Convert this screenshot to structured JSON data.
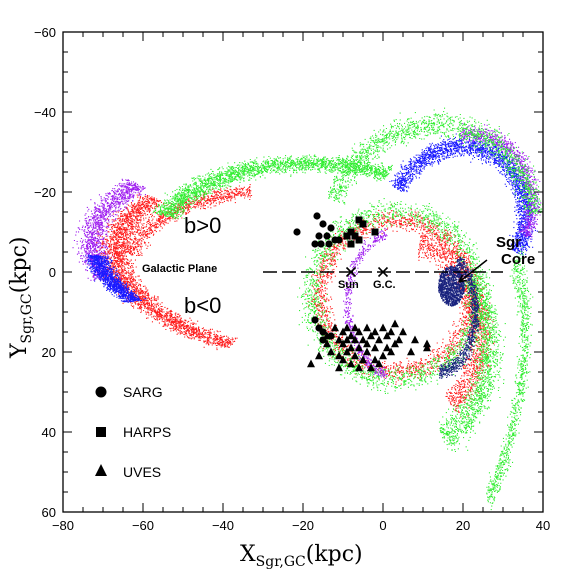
{
  "chart_data": {
    "type": "scatter",
    "xlabel": {
      "main": "X",
      "sub": "Sgr,GC",
      "unit": "(kpc)"
    },
    "ylabel": {
      "main": "Y",
      "sub": "Sgr,GC",
      "unit": "(kpc)"
    },
    "xlim": [
      -80,
      40
    ],
    "ylim": [
      60,
      -60
    ],
    "y_inverted": true,
    "xticks": [
      "−80",
      "−60",
      "−40",
      "−20",
      "0",
      "20",
      "40"
    ],
    "xtick_values": [
      -80,
      -60,
      -40,
      -20,
      0,
      20,
      40
    ],
    "yticks": [
      "−60",
      "−40",
      "−20",
      "0",
      "20",
      "40",
      "60"
    ],
    "ytick_values": [
      -60,
      -40,
      -20,
      0,
      20,
      40,
      60
    ],
    "grid": false,
    "legend_placement": "bottom-left",
    "colors": {
      "purple": "#a020f0",
      "blue": "#1a1aff",
      "red": "#ff2020",
      "green": "#33ee33",
      "navy": "#1a237e",
      "black": "#000000"
    },
    "streams": [
      {
        "color": "purple",
        "cx": -22,
        "cy": -2,
        "rx": 51,
        "ry": 25,
        "rot": 8,
        "t0": 155,
        "t1": 215,
        "width": 3.5,
        "n": 1400
      },
      {
        "color": "red",
        "cx": -20,
        "cy": -2,
        "rx": 47,
        "ry": 23,
        "rot": 5,
        "t0": 110,
        "t1": 215,
        "width": 3.5,
        "n": 2600
      },
      {
        "color": "red",
        "cx": -30,
        "cy": 1,
        "rx": 35,
        "ry": 21,
        "rot": 0,
        "t0": 195,
        "t1": 265,
        "width": 3,
        "n": 900
      },
      {
        "color": "blue",
        "cx": -24,
        "cy": 1,
        "rx": 48,
        "ry": 18,
        "rot": 8,
        "t0": 140,
        "t1": 175,
        "width": 3,
        "n": 1300
      },
      {
        "color": "green",
        "cx": -15,
        "cy": -3,
        "rx": 43,
        "ry": 24,
        "rot": 4,
        "t0": 200,
        "t1": 290,
        "width": 3.5,
        "n": 2400
      },
      {
        "color": "blue",
        "cx": 18,
        "cy": -12,
        "rx": 17,
        "ry": 20,
        "rot": 25,
        "t0": 185,
        "t1": 360,
        "width": 2.5,
        "n": 2400
      },
      {
        "color": "purple",
        "cx": 20,
        "cy": -16,
        "rx": 17,
        "ry": 19,
        "rot": 25,
        "t0": 240,
        "t1": 360,
        "width": 2,
        "n": 900
      },
      {
        "color": "green",
        "cx": 12,
        "cy": -9,
        "rx": 26,
        "ry": 28,
        "rot": 20,
        "t0": 180,
        "t1": 330,
        "width": 3,
        "n": 1600
      },
      {
        "color": "red",
        "cx": 3,
        "cy": 6,
        "rx": 19,
        "ry": 19,
        "rot": 0,
        "t0": 0,
        "t1": 360,
        "width": 2.5,
        "n": 2000
      },
      {
        "color": "green",
        "cx": 3,
        "cy": 6,
        "rx": 21,
        "ry": 21,
        "rot": 0,
        "t0": 0,
        "t1": 360,
        "width": 3,
        "n": 2200
      },
      {
        "color": "purple",
        "cx": 3,
        "cy": 8,
        "rx": 12,
        "ry": 18,
        "rot": 0,
        "t0": 100,
        "t1": 260,
        "width": 1.5,
        "n": 500
      },
      {
        "color": "red",
        "cx": 5,
        "cy": 14,
        "rx": 19,
        "ry": 23,
        "rot": -15,
        "t0": 300,
        "t1": 430,
        "width": 3.5,
        "n": 1300
      },
      {
        "color": "green",
        "cx": 4,
        "cy": 16,
        "rx": 22,
        "ry": 28,
        "rot": -15,
        "t0": 340,
        "t1": 440,
        "width": 4,
        "n": 1400
      },
      {
        "color": "green",
        "cx": 20,
        "cy": 30,
        "rx": 14,
        "ry": 40,
        "rot": 10,
        "t0": -60,
        "t1": 40,
        "width": 4,
        "n": 900
      },
      {
        "color": "navy",
        "cx": 14,
        "cy": 10,
        "rx": 9,
        "ry": 15,
        "rot": 0,
        "t0": -60,
        "t1": 90,
        "width": 1.8,
        "n": 900
      }
    ],
    "core": {
      "color": "navy",
      "cx": 17,
      "cy": 3.5,
      "rx": 3.3,
      "ry": 5,
      "n": 900
    },
    "galactic_plane": {
      "x0": -30,
      "x1": 30,
      "y": 0
    },
    "crosses": [
      {
        "label": "Sun",
        "x": -8,
        "y": 0
      },
      {
        "label": "G.C.",
        "x": 0,
        "y": 0
      }
    ],
    "sgr_arrow": {
      "x0": 26,
      "y0": -3,
      "x1": 19,
      "y1": 2.5
    },
    "samples": {
      "SARG": {
        "marker": "circle",
        "points": [
          [
            -21.5,
            -10
          ],
          [
            -16.5,
            -14
          ],
          [
            -15,
            -12
          ],
          [
            -13,
            -11
          ],
          [
            -16,
            -9
          ],
          [
            -14,
            -9
          ],
          [
            -12,
            -8
          ],
          [
            -17,
            -7
          ],
          [
            -15.5,
            -7
          ],
          [
            -13.5,
            -7
          ],
          [
            -11,
            -8
          ],
          [
            -17,
            12
          ],
          [
            -16,
            14
          ],
          [
            -15,
            15
          ],
          [
            -15,
            17
          ],
          [
            -13,
            16
          ]
        ]
      },
      "HARPS": {
        "marker": "square",
        "points": [
          [
            -6,
            -13
          ],
          [
            -5,
            -12
          ],
          [
            -8,
            -10
          ],
          [
            -9,
            -9
          ],
          [
            -7,
            -9
          ],
          [
            -6,
            -8
          ],
          [
            -2,
            -10
          ],
          [
            -8,
            -7
          ]
        ]
      },
      "UVES": {
        "marker": "triangle",
        "points": [
          [
            -18,
            23
          ],
          [
            -14,
            16
          ],
          [
            -14,
            18
          ],
          [
            -13,
            20
          ],
          [
            -12,
            14
          ],
          [
            -11,
            17
          ],
          [
            -11,
            21
          ],
          [
            -10,
            15
          ],
          [
            -10,
            18
          ],
          [
            -10,
            22
          ],
          [
            -9,
            14
          ],
          [
            -9,
            17
          ],
          [
            -9,
            20
          ],
          [
            -8,
            16
          ],
          [
            -8,
            19
          ],
          [
            -8,
            23
          ],
          [
            -7,
            14
          ],
          [
            -7,
            17
          ],
          [
            -7,
            21
          ],
          [
            -6,
            15
          ],
          [
            -6,
            19
          ],
          [
            -5,
            17
          ],
          [
            -5,
            22
          ],
          [
            -4,
            14
          ],
          [
            -4,
            18
          ],
          [
            -4,
            20
          ],
          [
            -3,
            16
          ],
          [
            -3,
            24
          ],
          [
            -2,
            15
          ],
          [
            -2,
            19
          ],
          [
            -2,
            22
          ],
          [
            -1,
            17
          ],
          [
            0,
            14
          ],
          [
            0,
            21
          ],
          [
            1,
            16
          ],
          [
            1,
            19
          ],
          [
            2,
            15
          ],
          [
            3,
            13
          ],
          [
            3,
            18
          ],
          [
            4,
            17
          ],
          [
            5,
            15
          ],
          [
            7,
            20
          ],
          [
            8,
            17
          ],
          [
            11,
            18
          ],
          [
            11,
            19
          ],
          [
            2,
            20
          ],
          [
            -1,
            23
          ],
          [
            -6,
            24
          ],
          [
            -11,
            24
          ],
          [
            -16,
            21
          ]
        ]
      }
    },
    "annotations": {
      "b_pos": "b>0",
      "b_neg": "b<0",
      "galactic_plane": "Galactic Plane",
      "sun": "Sun",
      "gc": "G.C.",
      "sgr": "Sgr",
      "core": "Core"
    },
    "legend": [
      {
        "label": "SARG",
        "marker": "circle"
      },
      {
        "label": "HARPS",
        "marker": "square"
      },
      {
        "label": "UVES",
        "marker": "triangle"
      }
    ]
  }
}
